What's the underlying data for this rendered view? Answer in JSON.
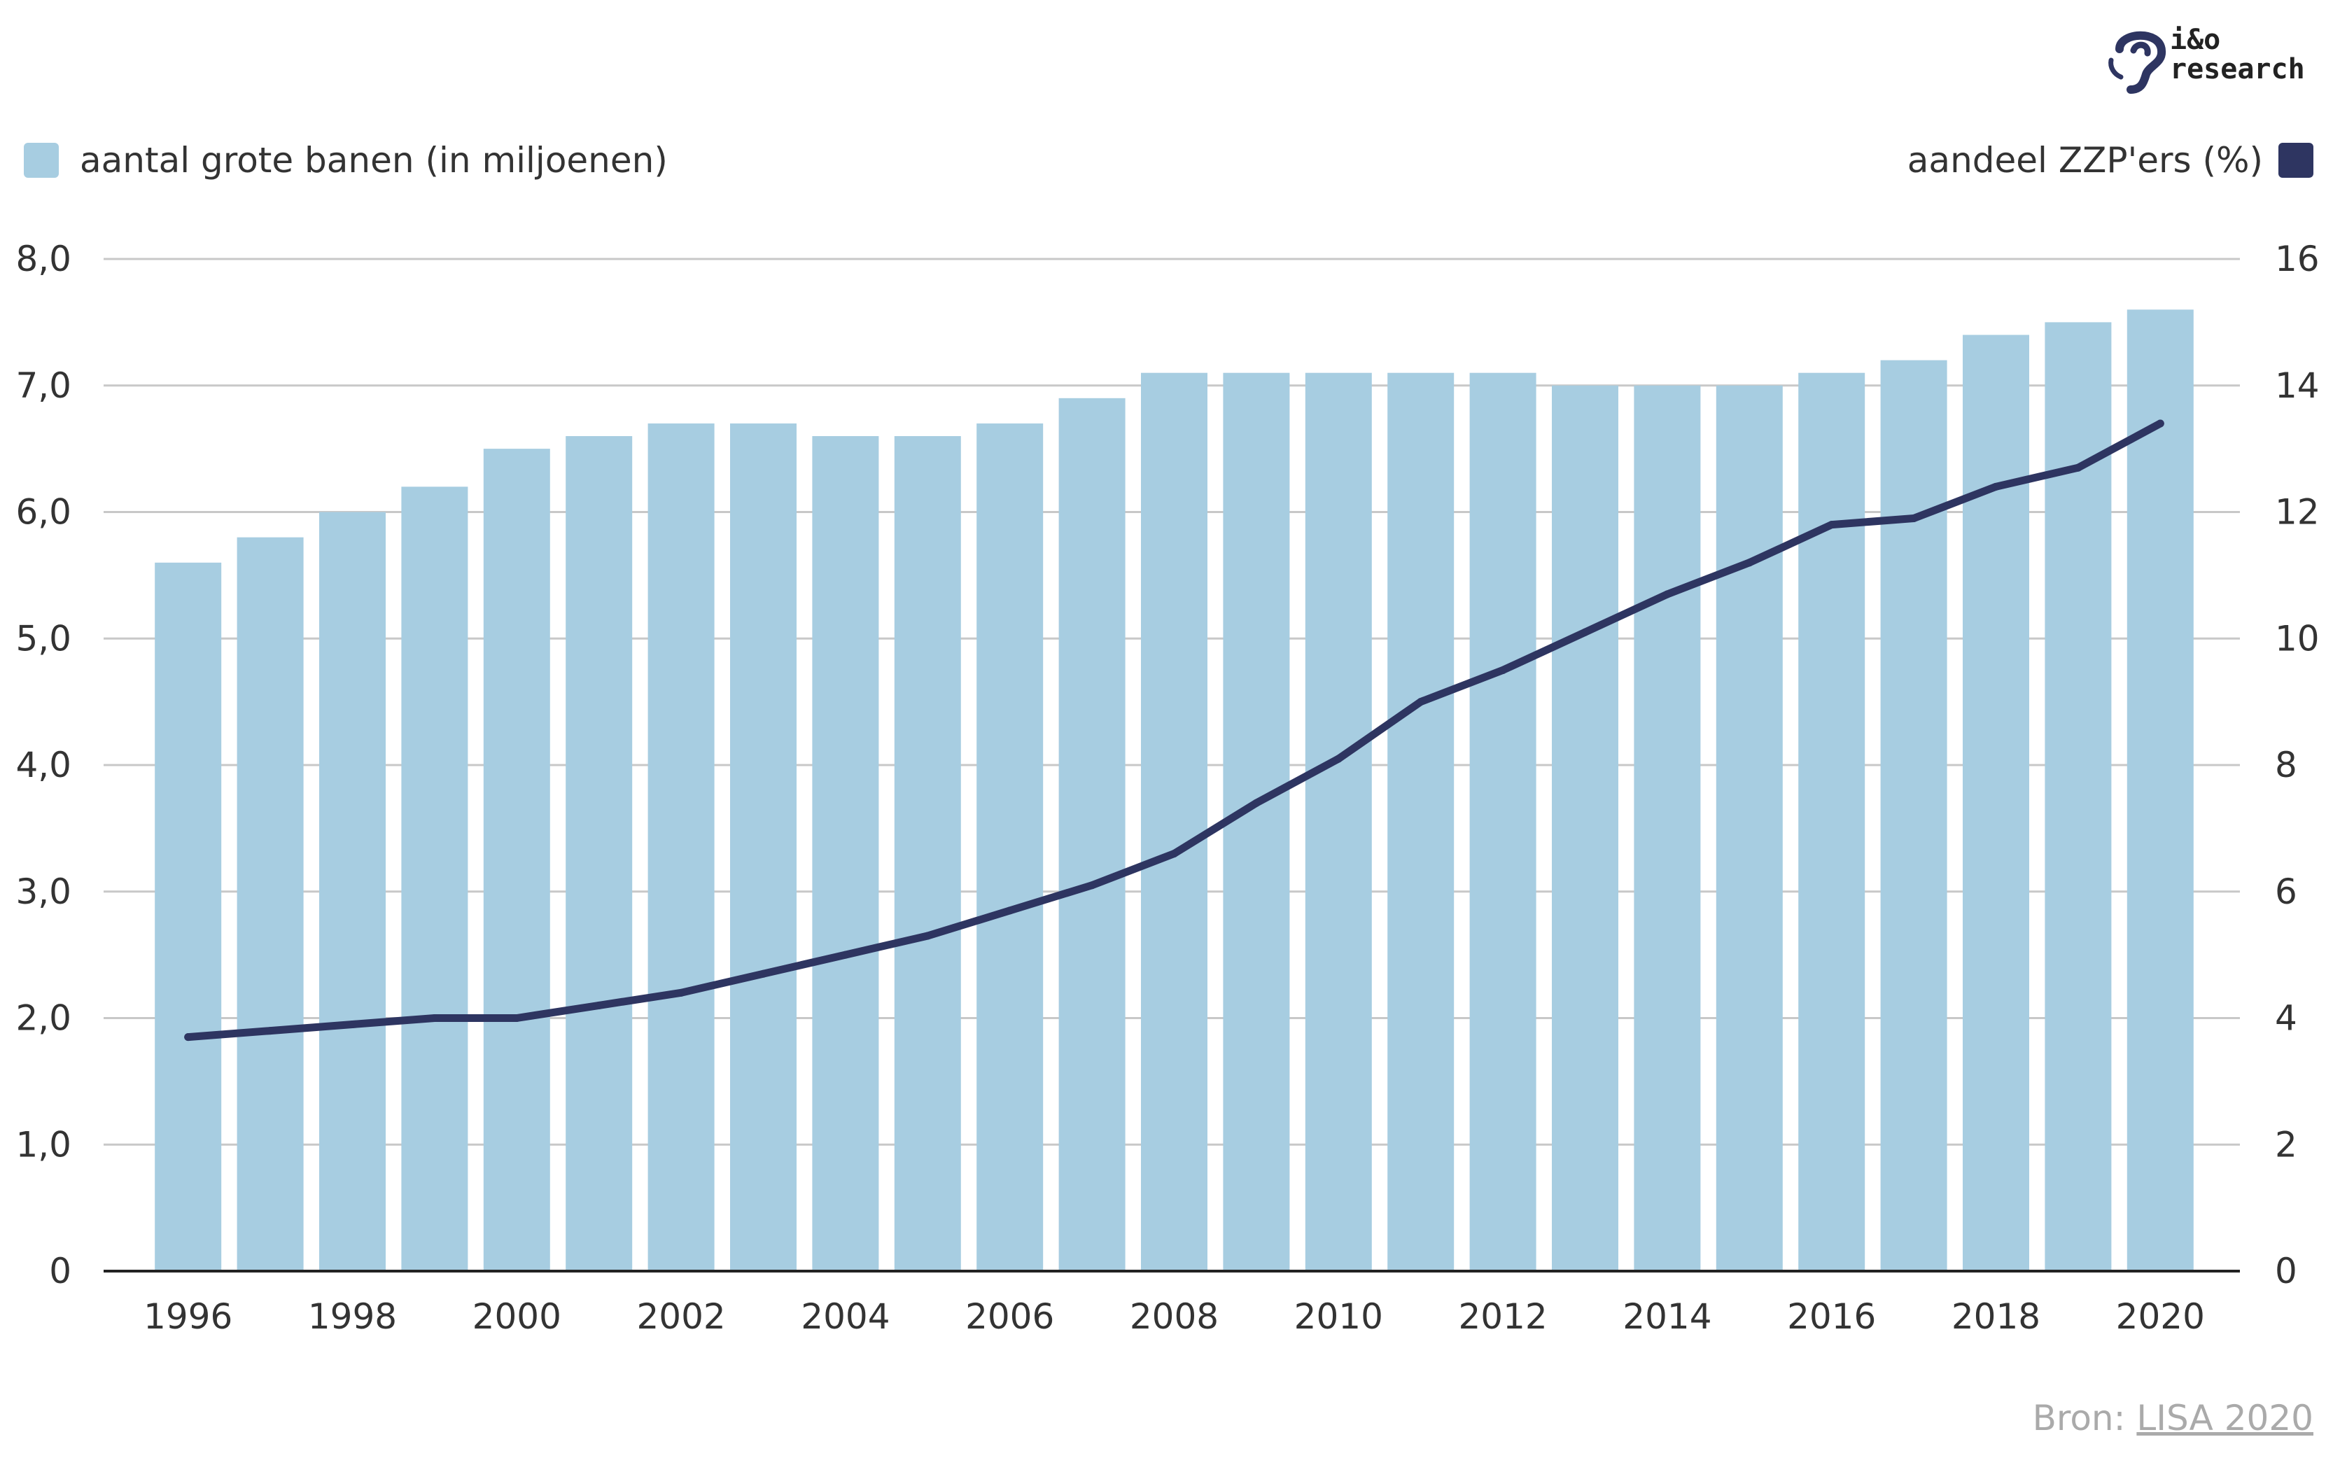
{
  "logo": {
    "line1": "i&o",
    "line2": "research"
  },
  "legend": {
    "bars_label": "aantal grote banen (in miljoenen)",
    "line_label": "aandeel ZZP'ers (%)"
  },
  "source": {
    "prefix": "Bron:",
    "link": "LISA 2020"
  },
  "colors": {
    "bar": "#a7cde1",
    "line": "#2e3561",
    "grid": "#c8c8c8",
    "axis": "#222222"
  },
  "chart_data": {
    "type": "bar",
    "x": [
      1996,
      1997,
      1998,
      1999,
      2000,
      2001,
      2002,
      2003,
      2004,
      2005,
      2006,
      2007,
      2008,
      2009,
      2010,
      2011,
      2012,
      2013,
      2014,
      2015,
      2016,
      2017,
      2018,
      2019,
      2020
    ],
    "x_tick_labels": [
      "1996",
      "1998",
      "2000",
      "2002",
      "2004",
      "2006",
      "2008",
      "2010",
      "2012",
      "2014",
      "2016",
      "2018",
      "2020"
    ],
    "series": [
      {
        "name": "aantal grote banen (in miljoenen)",
        "type": "bar",
        "axis": "left",
        "values": [
          5.6,
          5.8,
          6.0,
          6.2,
          6.5,
          6.6,
          6.7,
          6.7,
          6.6,
          6.6,
          6.7,
          6.9,
          7.1,
          7.1,
          7.1,
          7.1,
          7.1,
          7.0,
          7.0,
          7.0,
          7.1,
          7.2,
          7.4,
          7.5,
          7.6
        ]
      },
      {
        "name": "aandeel ZZP'ers (%)",
        "type": "line",
        "axis": "right",
        "values": [
          3.7,
          3.8,
          3.9,
          4.0,
          4.0,
          4.2,
          4.4,
          4.7,
          5.0,
          5.3,
          5.7,
          6.1,
          6.6,
          7.4,
          8.1,
          9.0,
          9.5,
          10.1,
          10.7,
          11.2,
          11.8,
          11.9,
          12.4,
          12.7,
          13.4
        ]
      }
    ],
    "y_left": {
      "min": 0,
      "max": 8,
      "tick_labels": [
        "0",
        "1,0",
        "2,0",
        "3,0",
        "4,0",
        "5,0",
        "6,0",
        "7,0",
        "8,0"
      ]
    },
    "y_right": {
      "min": 0,
      "max": 16,
      "tick_labels": [
        "0",
        "2",
        "4",
        "6",
        "8",
        "10",
        "12",
        "14",
        "16"
      ]
    },
    "grid": true,
    "legend_placement": "top"
  }
}
